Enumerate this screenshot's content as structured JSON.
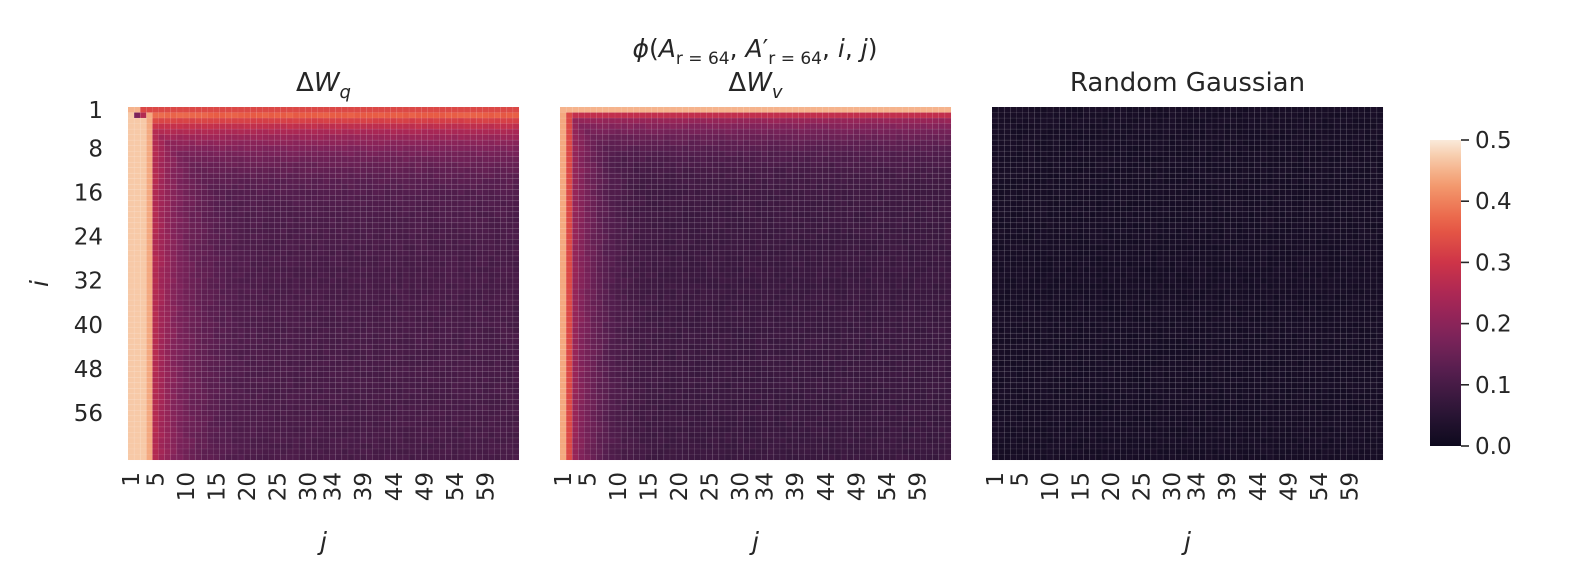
{
  "chart_data": {
    "type": "heatmap",
    "suptitle": "ϕ(A_{r=64}, A'_{r=64}, i, j)",
    "panels": [
      {
        "title": "ΔW_q",
        "pattern": "dW_q",
        "description_of_values": "Bright (~0.5) along row i=1 (~0.35) and first columns j=1..4 (~0.45); decays toward ~0.1 for large i and j."
      },
      {
        "title": "ΔW_v",
        "pattern": "dW_v",
        "description_of_values": "Bright (~0.45) along row i=1 and column j=1; decays quickly to ~0.08-0.12 elsewhere."
      },
      {
        "title": "Random Gaussian",
        "pattern": "random",
        "description_of_values": "Uniformly near 0.0 everywhere."
      }
    ],
    "xlabel": "j",
    "ylabel": "i",
    "rows": 64,
    "cols": 64,
    "x_tick_labels": [
      "1",
      "5",
      "10",
      "15",
      "20",
      "25",
      "30",
      "34",
      "39",
      "44",
      "49",
      "54",
      "59"
    ],
    "y_tick_labels": [
      "1",
      "8",
      "16",
      "24",
      "32",
      "40",
      "48",
      "56"
    ],
    "colorbar": {
      "min": 0.0,
      "max": 0.5,
      "ticks": [
        "0.0",
        "0.1",
        "0.2",
        "0.3",
        "0.4",
        "0.5"
      ],
      "colormap": "rocket"
    }
  }
}
